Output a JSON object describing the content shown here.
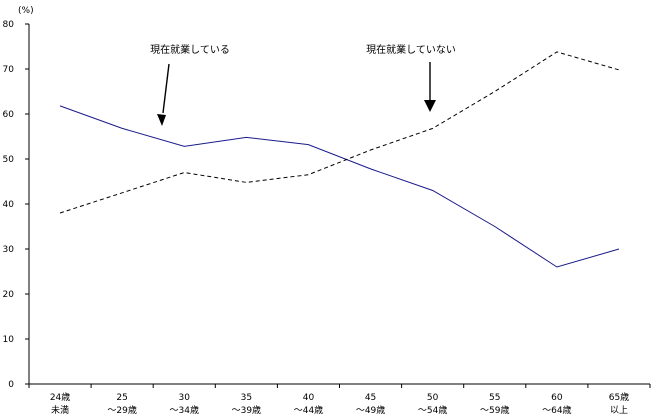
{
  "chart_data": {
    "type": "line",
    "unit_label": "(%)",
    "ylim": [
      0,
      80
    ],
    "y_ticks": [
      "0",
      "10",
      "20",
      "30",
      "40",
      "50",
      "60",
      "70",
      "80"
    ],
    "grid": false,
    "categories": [
      [
        "24歳",
        "未満"
      ],
      [
        "25",
        "〜29歳"
      ],
      [
        "30",
        "〜34歳"
      ],
      [
        "35",
        "〜39歳"
      ],
      [
        "40",
        "〜44歳"
      ],
      [
        "45",
        "〜49歳"
      ],
      [
        "50",
        "〜54歳"
      ],
      [
        "55",
        "〜59歳"
      ],
      [
        "60",
        "〜64歳"
      ],
      [
        "65歳",
        "以上"
      ]
    ],
    "series": [
      {
        "name": "現在就業している",
        "values": [
          61.8,
          56.8,
          52.8,
          54.8,
          53.2,
          47.8,
          43.0,
          35.0,
          26.0,
          30.0
        ],
        "color": "#1a1a8c",
        "style": "solid"
      },
      {
        "name": "現在就業していない",
        "values": [
          38.0,
          42.5,
          47.0,
          44.8,
          46.5,
          52.0,
          56.8,
          65.0,
          73.8,
          69.8
        ],
        "color": "#000000",
        "style": "dashed"
      }
    ]
  }
}
